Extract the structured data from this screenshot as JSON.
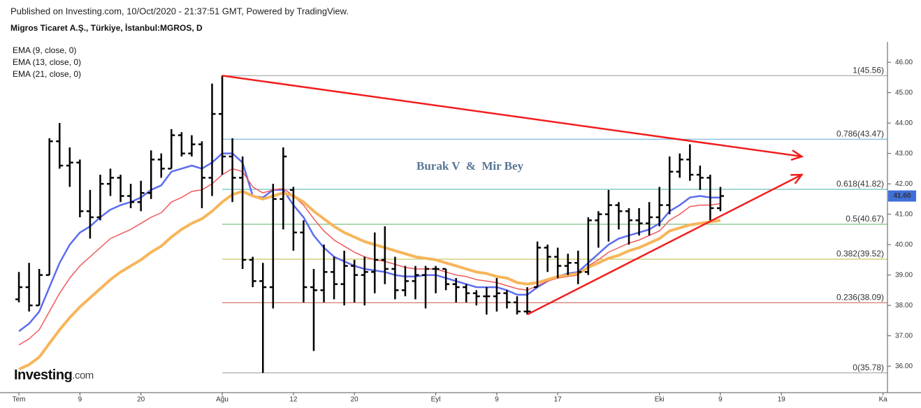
{
  "header": {
    "published": "Published on Investing.com, 10/Oct/2020 - 21:37:51 GMT, Powered by TradingView.",
    "symbol": "Migros Ticaret A.Ş., Türkiye, İstanbul:MGROS, D"
  },
  "chart_data": {
    "type": "ohlc",
    "open": [
      38.2,
      38.6,
      38.0,
      39.0,
      43.4,
      42.6,
      42.7,
      41.1,
      40.9,
      42.0,
      42.2,
      41.6,
      41.4,
      41.7,
      42.8,
      42.5,
      43.6,
      43.0,
      43.3,
      42.2,
      44.3,
      42.9,
      42.2,
      39.5,
      38.8,
      38.6,
      41.5,
      41.8,
      40.4,
      38.6,
      38.5,
      39.1,
      38.7,
      39.3,
      39.0,
      39.1,
      39.5,
      39.2,
      38.5,
      38.8,
      39.0,
      39.2,
      39.2,
      38.7,
      38.6,
      38.4,
      38.3,
      38.3,
      38.4,
      38.1,
      37.8,
      38.6,
      39.9,
      39.6,
      39.3,
      39.4,
      39.1,
      40.8,
      41.0,
      41.3,
      41.1,
      40.8,
      40.7,
      40.9,
      41.3,
      42.4,
      42.8,
      42.3,
      42.2,
      41.2
    ],
    "high": [
      39.1,
      39.4,
      39.2,
      43.5,
      44.0,
      43.2,
      42.8,
      41.8,
      42.3,
      42.5,
      42.3,
      42.0,
      42.1,
      43.1,
      43.0,
      43.8,
      43.7,
      43.6,
      43.4,
      45.3,
      45.56,
      43.5,
      42.9,
      39.6,
      39.4,
      42.0,
      43.2,
      41.9,
      40.8,
      39.2,
      40.0,
      39.6,
      39.8,
      39.5,
      39.6,
      40.4,
      40.6,
      39.6,
      39.3,
      39.3,
      39.3,
      39.3,
      39.2,
      38.9,
      38.7,
      38.5,
      38.6,
      38.9,
      38.5,
      38.3,
      38.6,
      40.1,
      40.0,
      39.9,
      39.7,
      39.8,
      40.9,
      41.1,
      41.8,
      41.4,
      41.2,
      41.2,
      41.4,
      41.9,
      42.9,
      43.0,
      43.3,
      42.6,
      42.3,
      41.9
    ],
    "low": [
      38.1,
      37.8,
      38.0,
      39.0,
      42.5,
      41.9,
      40.9,
      40.2,
      40.8,
      41.6,
      41.4,
      41.2,
      41.1,
      41.5,
      42.2,
      42.5,
      42.9,
      42.9,
      41.2,
      41.6,
      42.3,
      41.4,
      39.2,
      38.6,
      35.78,
      37.9,
      40.5,
      39.8,
      38.1,
      36.5,
      38.1,
      38.2,
      38.0,
      38.1,
      38.0,
      38.4,
      38.7,
      38.2,
      38.3,
      38.2,
      37.9,
      38.4,
      38.5,
      38.1,
      38.1,
      38.0,
      37.7,
      37.8,
      37.9,
      37.7,
      37.7,
      38.6,
      39.1,
      38.9,
      39.0,
      38.7,
      39.0,
      39.9,
      40.1,
      40.5,
      40.0,
      40.3,
      40.3,
      40.6,
      41.0,
      42.2,
      42.1,
      41.8,
      40.8,
      41.1
    ],
    "close": [
      38.6,
      38.0,
      39.0,
      43.4,
      42.6,
      42.7,
      41.1,
      40.9,
      42.0,
      42.2,
      41.6,
      41.4,
      41.7,
      42.8,
      42.5,
      43.6,
      43.0,
      43.3,
      42.2,
      44.3,
      42.9,
      42.2,
      39.5,
      38.8,
      38.6,
      41.5,
      42.9,
      40.4,
      38.6,
      38.5,
      39.1,
      38.7,
      39.3,
      39.0,
      39.1,
      39.5,
      39.2,
      38.5,
      38.8,
      39.0,
      39.2,
      39.2,
      38.7,
      38.6,
      38.4,
      38.3,
      38.3,
      38.4,
      38.1,
      37.8,
      37.8,
      39.9,
      39.6,
      39.3,
      39.4,
      39.1,
      40.8,
      41.0,
      41.3,
      41.1,
      40.8,
      40.7,
      40.9,
      41.3,
      42.4,
      42.8,
      42.3,
      42.2,
      41.2,
      41.6
    ],
    "bar_color": "#000000",
    "series": [
      {
        "name": "EMA (9, close, 0)",
        "color": "#5b6cf0",
        "values": [
          37.15,
          37.4,
          37.8,
          38.6,
          39.4,
          40.0,
          40.4,
          40.6,
          40.9,
          41.15,
          41.3,
          41.4,
          41.55,
          41.8,
          41.95,
          42.4,
          42.5,
          42.6,
          42.5,
          42.7,
          43.0,
          43.0,
          42.7,
          41.6,
          41.55,
          41.8,
          41.8,
          41.3,
          40.9,
          40.3,
          39.9,
          39.6,
          39.45,
          39.3,
          39.2,
          39.15,
          39.1,
          39.0,
          38.95,
          38.95,
          39.0,
          39.0,
          38.9,
          38.8,
          38.7,
          38.6,
          38.6,
          38.6,
          38.5,
          38.35,
          38.35,
          38.6,
          38.8,
          38.95,
          39.05,
          39.1,
          39.4,
          39.7,
          40.0,
          40.2,
          40.3,
          40.4,
          40.5,
          40.7,
          41.1,
          41.3,
          41.55,
          41.6,
          41.55,
          41.55
        ]
      },
      {
        "name": "EMA (13, close, 0)",
        "color": "#f0585a",
        "values": [
          36.7,
          36.9,
          37.2,
          37.8,
          38.4,
          38.9,
          39.3,
          39.6,
          39.9,
          40.2,
          40.35,
          40.5,
          40.7,
          40.9,
          41.05,
          41.4,
          41.55,
          41.75,
          41.8,
          42.0,
          42.3,
          42.5,
          42.4,
          41.9,
          41.7,
          41.8,
          41.85,
          41.6,
          41.3,
          40.85,
          40.45,
          40.15,
          39.95,
          39.75,
          39.6,
          39.5,
          39.45,
          39.35,
          39.25,
          39.2,
          39.2,
          39.2,
          39.1,
          39.0,
          38.95,
          38.85,
          38.8,
          38.75,
          38.65,
          38.55,
          38.5,
          38.65,
          38.8,
          38.9,
          38.95,
          39.0,
          39.3,
          39.5,
          39.75,
          39.9,
          40.05,
          40.15,
          40.3,
          40.45,
          40.8,
          41.0,
          41.25,
          41.3,
          41.3,
          41.35
        ]
      },
      {
        "name": "EMA (21, close, 0)",
        "color": "#f7b55a",
        "values": [
          35.9,
          36.05,
          36.3,
          36.75,
          37.2,
          37.6,
          37.95,
          38.25,
          38.55,
          38.85,
          39.1,
          39.3,
          39.5,
          39.75,
          39.95,
          40.25,
          40.5,
          40.7,
          40.85,
          41.1,
          41.4,
          41.65,
          41.75,
          41.6,
          41.5,
          41.6,
          41.7,
          41.6,
          41.4,
          41.1,
          40.85,
          40.6,
          40.4,
          40.25,
          40.1,
          40.0,
          39.9,
          39.8,
          39.7,
          39.6,
          39.55,
          39.5,
          39.4,
          39.3,
          39.2,
          39.1,
          39.05,
          38.95,
          38.9,
          38.75,
          38.7,
          38.75,
          38.85,
          38.95,
          39.0,
          39.05,
          39.25,
          39.4,
          39.55,
          39.65,
          39.8,
          39.9,
          40.05,
          40.2,
          40.45,
          40.55,
          40.65,
          40.7,
          40.75,
          40.8
        ]
      }
    ],
    "fib_levels": [
      {
        "label": "1(45.56)",
        "value": 45.56,
        "color": "#888888"
      },
      {
        "label": "0.786(43.47)",
        "value": 43.47,
        "color": "#3d9ad1"
      },
      {
        "label": "0.618(41.82)",
        "value": 41.82,
        "color": "#26a69a"
      },
      {
        "label": "0.5(40.67)",
        "value": 40.67,
        "color": "#43a047"
      },
      {
        "label": "0.382(39.52)",
        "value": 39.52,
        "color": "#b0b020"
      },
      {
        "label": "0.236(38.09)",
        "value": 38.09,
        "color": "#c0392b"
      },
      {
        "label": "0(35.78)",
        "value": 35.78,
        "color": "#888888"
      }
    ],
    "trendlines": [
      {
        "x": [
          20,
          77
        ],
        "y": [
          45.56,
          42.9
        ],
        "color": "#f21d1d"
      },
      {
        "x": [
          50,
          77
        ],
        "y": [
          37.7,
          42.3
        ],
        "color": "#f21d1d"
      }
    ],
    "annotation": "Burak V  &  Mir Bey",
    "last_price": {
      "value": 41.6,
      "label": "41.60"
    },
    "last_price_color": "#3f6fd9",
    "xlim": [
      -1.86,
      85.43
    ],
    "xticks": [
      {
        "value": 0,
        "label": "Tem"
      },
      {
        "value": 6,
        "label": "9"
      },
      {
        "value": 12,
        "label": "20"
      },
      {
        "value": 20,
        "label": "Ağu"
      },
      {
        "value": 27,
        "label": "12"
      },
      {
        "value": 33,
        "label": "20"
      },
      {
        "value": 41,
        "label": "Eyl"
      },
      {
        "value": 47,
        "label": "9"
      },
      {
        "value": 53,
        "label": "17"
      },
      {
        "value": 63,
        "label": "Eki"
      },
      {
        "value": 69,
        "label": "9"
      },
      {
        "value": 75,
        "label": "19"
      },
      {
        "value": 85,
        "label": "Ka"
      }
    ],
    "ylim": [
      35.13,
      46.67
    ],
    "yticks": [
      {
        "value": 36,
        "label": "36.00"
      },
      {
        "value": 37,
        "label": "37.00"
      },
      {
        "value": 38,
        "label": "38.00"
      },
      {
        "value": 39,
        "label": "39.00"
      },
      {
        "value": 40,
        "label": "40.00"
      },
      {
        "value": 41,
        "label": "41.00"
      },
      {
        "value": 42,
        "label": "42.00"
      },
      {
        "value": 43,
        "label": "43.00"
      },
      {
        "value": 44,
        "label": "44.00"
      },
      {
        "value": 45,
        "label": "45.00"
      },
      {
        "value": 46,
        "label": "46.00"
      }
    ],
    "watermark": [
      "Investing",
      ".com"
    ]
  }
}
